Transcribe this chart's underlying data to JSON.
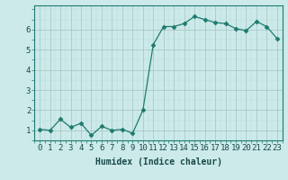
{
  "x": [
    0,
    1,
    2,
    3,
    4,
    5,
    6,
    7,
    8,
    9,
    10,
    11,
    12,
    13,
    14,
    15,
    16,
    17,
    18,
    19,
    20,
    21,
    22,
    23
  ],
  "y": [
    1.05,
    1.0,
    1.55,
    1.15,
    1.35,
    0.75,
    1.2,
    1.0,
    1.05,
    0.85,
    2.0,
    5.25,
    6.15,
    6.15,
    6.3,
    6.65,
    6.5,
    6.35,
    6.3,
    6.05,
    5.95,
    6.4,
    6.15,
    5.55
  ],
  "line_color": "#1e7b6e",
  "marker": "D",
  "marker_size": 2.5,
  "bg_color": "#cceaea",
  "grid_color_major": "#aac8c8",
  "grid_color_minor": "#bbdada",
  "xlabel": "Humidex (Indice chaleur)",
  "xlabel_fontsize": 7,
  "yticks": [
    1,
    2,
    3,
    4,
    5,
    6
  ],
  "xtick_labels": [
    "0",
    "1",
    "2",
    "3",
    "4",
    "5",
    "6",
    "7",
    "8",
    "9",
    "10",
    "11",
    "12",
    "13",
    "14",
    "15",
    "16",
    "17",
    "18",
    "19",
    "20",
    "21",
    "22",
    "23"
  ],
  "ylim": [
    0.5,
    7.2
  ],
  "xlim": [
    -0.5,
    23.5
  ],
  "tick_fontsize": 6.5
}
